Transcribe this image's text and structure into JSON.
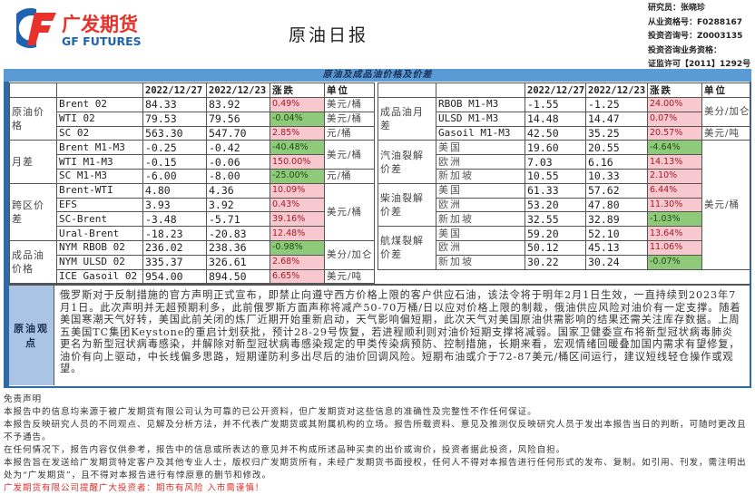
{
  "header": {
    "logo_cn": "广发期货",
    "logo_en": "GF FUTURES",
    "title": "原油日报",
    "meta": [
      "研究员：张晓珍",
      "从业资格号：F0288167",
      "投资咨询号：Z0003135",
      "投资咨询业务资格：",
      "证监许可【2011】1292号"
    ]
  },
  "section_title": "原油及成品油价格及价差",
  "columns": [
    "",
    "",
    "2022/12/27",
    "2022/12/23",
    "涨跌",
    "单位"
  ],
  "left_groups": [
    {
      "category": "原油价格",
      "rows": [
        [
          "Brent  02",
          "84.33",
          "83.92",
          "0.49%",
          "美元/桶"
        ],
        [
          "WTI  02",
          "79.53",
          "79.56",
          "-0.04%",
          "美元/桶"
        ],
        [
          "SC  02",
          "563.30",
          "547.70",
          "2.85%",
          "元/桶"
        ]
      ]
    },
    {
      "category": "月差",
      "rows": [
        [
          "Brent  M1-M3",
          "-0.25",
          "-0.42",
          "-40.48%",
          "美元/桶"
        ],
        [
          "WTI  M1-M3",
          "-0.15",
          "-0.06",
          "150.00%",
          null
        ],
        [
          "SC  M1-M3",
          "-6.00",
          "-8.00",
          "-25.00%",
          "元/桶"
        ]
      ]
    },
    {
      "category": "跨区价差",
      "rows": [
        [
          "Brent-WTI",
          "4.80",
          "4.36",
          "10.09%",
          "美元/桶"
        ],
        [
          "EFS",
          "3.93",
          "3.92",
          "0.43%",
          null
        ],
        [
          "SC-Brent",
          "-3.48",
          "-5.71",
          "39.16%",
          null
        ],
        [
          "Ural-Brent",
          "-18.23",
          "-20.83",
          "12.48%",
          null
        ]
      ]
    },
    {
      "category": "成品油价格",
      "rows": [
        [
          "NYM RBOB  02",
          "236.02",
          "238.36",
          "-0.98%",
          "美分/加仑"
        ],
        [
          "NYM ULSD  02",
          "335.37",
          "326.61",
          "2.68%",
          null
        ],
        [
          "ICE Gasoil 02",
          "954.00",
          "894.50",
          "6.65%",
          "美元/吨"
        ]
      ]
    }
  ],
  "right_groups": [
    {
      "category": "成品油月差",
      "rows": [
        [
          "RBOB  M1-M3",
          "-1.55",
          "-1.25",
          "24.00%",
          "美分/加仑"
        ],
        [
          "ULSD  M1-M3",
          "14.48",
          "14.47",
          "0.07%",
          null
        ],
        [
          "Gasoil  M1-M3",
          "42.50",
          "35.25",
          "20.57%",
          "美元/吨"
        ]
      ]
    },
    {
      "category": "汽油裂解价差",
      "rows": [
        [
          "美国",
          "19.60",
          "20.55",
          "-4.64%",
          "美元/桶"
        ],
        [
          "欧洲",
          "7.03",
          "6.16",
          "14.13%",
          null
        ],
        [
          "新加坡",
          "10.55",
          "10.33",
          "2.10%",
          null
        ]
      ]
    },
    {
      "category": "柴油裂解价差",
      "rows": [
        [
          "美国",
          "61.33",
          "57.62",
          "6.44%",
          null
        ],
        [
          "欧洲",
          "53.20",
          "47.80",
          "11.30%",
          null
        ],
        [
          "新加坡",
          "32.55",
          "32.89",
          "-1.03%",
          null
        ]
      ]
    },
    {
      "category": "航煤裂解价差",
      "rows": [
        [
          "美国",
          "59.20",
          "52.10",
          "13.64%",
          null
        ],
        [
          "欧洲",
          "50.12",
          "45.13",
          "11.06%",
          null
        ],
        [
          "新加坡",
          "30.22",
          "30.24",
          "-0.07%",
          null
        ]
      ]
    }
  ],
  "view": {
    "label": "原油观点",
    "text": "俄罗斯对于反制措施的官方声明正式宣布，即禁止向遵守西方价格上限的客户供应石油，该法令将于明年2月1日生效，一直持续到2023年7月1日。此次声明并无超预期利多，此前俄罗斯方面声称将减产50-70万桶/日以应对价格上限的制裁，俄油供应风险对油价有一定支撑。随着美国寒潮天气好转，美国此前关闭的炼厂近期开始重新启动，天气影响偏短期，此次天气对美国原油供需影响的结果还需关注库存数据。上周五美国TC集团Keystone的重启计划获批，预计28-29号恢复，若进程顺利则对油价短期支撑将减弱。国家卫健委宣布将新型冠状病毒肺炎更名为新型冠状病毒感染，并解除对新型冠状病毒感染规定的甲类传染病预防、控制措施，长期来看，宏观情绪回暖叠加国内需求有望修复，油价有向上驱动，中长线偏多思路，短期谨防利多出尽后的油价回调风险。短期布油或介于72-87美元/桶区间运行，建议短线轻仓操作或观望。"
  },
  "disclaimer": {
    "title": "免责声明",
    "lines": [
      "本报告中的信息均来源于被广发期货有限公司认为可靠的已公开资料，但广发期货对这些信息的准确性及完整性不作任何保证。",
      "本报告反映研究人员的不同观点、见解及分析方法，并不代表广发期货或其附属机构的立场。报告所载资料、意见及推测仅反映研究人员于发出本报告当日的判断，可随时更改且不予通告。",
      "在任何情况下，报告内容仅供参考，报告中的信息或所表达的意见并不构成所述品种买卖的出价或询价，投资者据此投资，风险自担。",
      "本报告旨在发送给广发期货特定客户及其他专业人士，版权归广发期货所有，未经广发期货书面授权，任何人不得对本报告进行任何形式的发布、复制。如引用、刊发，需注明出处为“广发期货”，且不得对本报告进行有悖原意的删节和修改。"
    ],
    "warning": "广发期货有限公司提醒广大投资者：期市有风险 入市需谨慎！"
  },
  "colors": {
    "up": "#f8c8cf",
    "down": "#8fc97a",
    "band": "#5b9bd5",
    "logo_red": "#e8312a",
    "logo_blue": "#1e63b0"
  }
}
